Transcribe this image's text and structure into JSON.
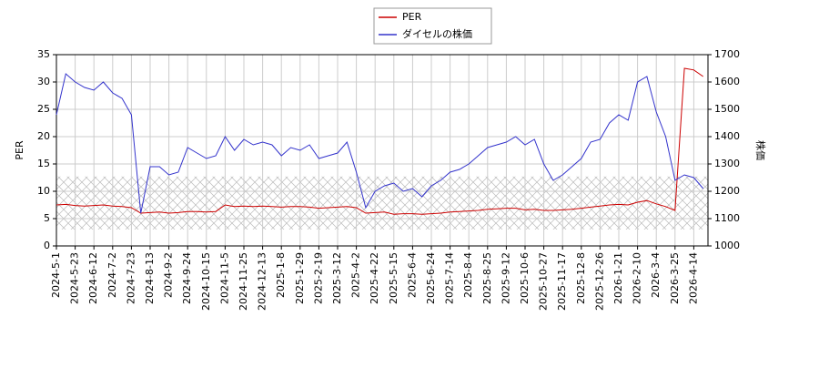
{
  "chart_data": {
    "type": "line",
    "categories": [
      "2024-5-1",
      null,
      "2024-5-23",
      null,
      "2024-6-12",
      null,
      "2024-7-2",
      null,
      "2024-7-23",
      null,
      "2024-8-13",
      null,
      "2024-9-2",
      null,
      "2024-9-24",
      null,
      "2024-10-15",
      null,
      "2024-11-5",
      null,
      "2024-11-25",
      null,
      "2024-12-13",
      null,
      "2025-1-8",
      null,
      "2025-1-29",
      null,
      "2025-2-19",
      null,
      "2025-3-12",
      null,
      "2025-4-2",
      null,
      "2025-4-22",
      null,
      "2025-5-15",
      null,
      "2025-6-4",
      null,
      "2025-6-24",
      null,
      "2025-7-14",
      null,
      "2025-8-4",
      null,
      "2025-8-25",
      null,
      "2025-9-12",
      null,
      "2025-10-6",
      null,
      "2025-10-27",
      null,
      "2025-11-17",
      null,
      "2025-12-8",
      null,
      "2025-12-26",
      null,
      "2026-1-21",
      null,
      "2026-2-10",
      null,
      "2026-3-4",
      null,
      "2026-3-25",
      null,
      "2026-4-14",
      null
    ],
    "series": [
      {
        "name": "PER",
        "color": "#cc0000",
        "axis": "y",
        "values": [
          7.5,
          7.6,
          7.4,
          7.3,
          7.4,
          7.5,
          7.3,
          7.2,
          7.0,
          6.0,
          6.1,
          6.2,
          6.0,
          6.1,
          6.3,
          6.3,
          6.2,
          6.3,
          7.5,
          7.2,
          7.3,
          7.2,
          7.3,
          7.2,
          7.1,
          7.2,
          7.2,
          7.1,
          6.9,
          7.0,
          7.1,
          7.2,
          7.0,
          6.0,
          6.1,
          6.2,
          5.8,
          5.9,
          5.9,
          5.8,
          5.9,
          6.0,
          6.2,
          6.3,
          6.4,
          6.5,
          6.7,
          6.8,
          6.9,
          6.9,
          6.6,
          6.7,
          6.5,
          6.5,
          6.6,
          6.7,
          6.9,
          7.1,
          7.3,
          7.5,
          7.6,
          7.5,
          8.0,
          8.3,
          7.7,
          7.2,
          6.5,
          32.5,
          32.2,
          31.0
        ]
      },
      {
        "name": "ダイセルの株価",
        "color": "#3333cc",
        "axis": "y2",
        "values": [
          1480,
          1630,
          1600,
          1580,
          1570,
          1600,
          1560,
          1540,
          1480,
          1120,
          1290,
          1290,
          1260,
          1270,
          1360,
          1340,
          1320,
          1330,
          1400,
          1350,
          1390,
          1370,
          1380,
          1370,
          1330,
          1360,
          1350,
          1370,
          1320,
          1330,
          1340,
          1380,
          1270,
          1140,
          1200,
          1220,
          1230,
          1200,
          1210,
          1180,
          1220,
          1240,
          1270,
          1280,
          1300,
          1330,
          1360,
          1370,
          1380,
          1400,
          1370,
          1390,
          1300,
          1240,
          1260,
          1290,
          1320,
          1380,
          1390,
          1450,
          1480,
          1460,
          1600,
          1620,
          1490,
          1400,
          1240,
          1260,
          1250,
          1210
        ]
      }
    ],
    "ylabel": "PER",
    "y2label": "株価",
    "ylim": [
      0,
      35
    ],
    "yticks": [
      0,
      5,
      10,
      15,
      20,
      25,
      30,
      35
    ],
    "y2lim": [
      1000,
      1700
    ],
    "y2ticks": [
      1000,
      1100,
      1200,
      1300,
      1400,
      1500,
      1600,
      1700
    ],
    "hatch_band": [
      3.0,
      12.7
    ],
    "grid": true,
    "legend": "top"
  }
}
